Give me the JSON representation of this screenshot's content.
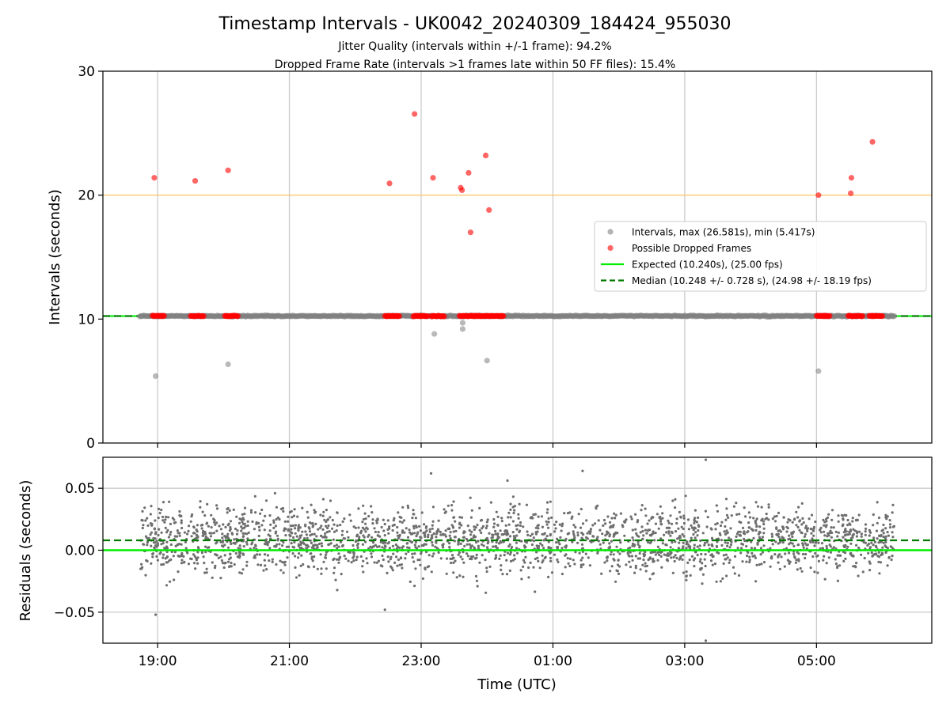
{
  "title": "Timestamp Intervals - UK0042_20240309_184424_955030",
  "subtitle_1": "Jitter Quality (intervals within +/-1 frame): 94.2%",
  "subtitle_2": "Dropped Frame Rate (intervals >1 frames late within 50 FF files): 15.4%",
  "colors": {
    "intervals": "#808080",
    "dropped": "#ff0000",
    "expected": "#00ee00",
    "median": "#007a00",
    "threshold": "#ffc04d",
    "grid": "#cccccc",
    "residuals": "#6e6e6e"
  },
  "chart_data": [
    {
      "type": "scatter",
      "panel": "top",
      "ylabel": "Intervals (seconds)",
      "ylim": [
        0,
        30
      ],
      "yticks": [
        "0",
        "10",
        "20",
        "30"
      ],
      "xlim_hours": [
        18.17,
        30.75
      ],
      "xgrid": true,
      "legend_position": "right",
      "legend": [
        "Intervals, max (26.581s), min (5.417s)",
        "Possible Dropped Frames",
        "Expected (10.240s), (25.00 fps)",
        "Median (10.248 +/- 0.728 s), (24.98 +/- 18.19 fps)"
      ],
      "interval_range_hours": [
        18.73,
        30.18
      ],
      "interval_baseline": 10.248,
      "intervals_outliers": [
        {
          "x": 18.97,
          "y": 5.4
        },
        {
          "x": 20.07,
          "y": 6.35
        },
        {
          "x": 23.2,
          "y": 8.8
        },
        {
          "x": 23.63,
          "y": 9.2
        },
        {
          "x": 23.63,
          "y": 9.7
        },
        {
          "x": 24.0,
          "y": 6.65
        },
        {
          "x": 29.03,
          "y": 5.8
        }
      ],
      "dropped_frames": [
        {
          "x": 18.95,
          "y": 21.4
        },
        {
          "x": 19.57,
          "y": 21.15
        },
        {
          "x": 20.07,
          "y": 22.0
        },
        {
          "x": 22.52,
          "y": 20.95
        },
        {
          "x": 22.9,
          "y": 26.55
        },
        {
          "x": 23.18,
          "y": 21.4
        },
        {
          "x": 23.6,
          "y": 20.6
        },
        {
          "x": 23.62,
          "y": 20.4
        },
        {
          "x": 23.72,
          "y": 21.8
        },
        {
          "x": 23.75,
          "y": 17.0
        },
        {
          "x": 23.98,
          "y": 23.2
        },
        {
          "x": 24.03,
          "y": 18.8
        },
        {
          "x": 29.03,
          "y": 20.0
        },
        {
          "x": 29.52,
          "y": 20.15
        },
        {
          "x": 29.53,
          "y": 21.4
        },
        {
          "x": 29.85,
          "y": 24.3
        }
      ],
      "dropped_clusters_hours": [
        [
          18.92,
          19.1
        ],
        [
          19.5,
          19.7
        ],
        [
          20.02,
          20.22
        ],
        [
          22.45,
          22.67
        ],
        [
          22.88,
          23.1
        ],
        [
          23.15,
          23.35
        ],
        [
          23.58,
          23.95
        ],
        [
          23.97,
          24.25
        ],
        [
          29.0,
          29.2
        ],
        [
          29.48,
          29.7
        ],
        [
          29.8,
          30.0
        ]
      ],
      "expected": 10.24,
      "median": 10.248,
      "threshold": 20.0
    },
    {
      "type": "scatter",
      "panel": "bottom",
      "ylabel": "Residuals (seconds)",
      "xlabel": "Time (UTC)",
      "ylim": [
        -0.075,
        0.075
      ],
      "yticks": [
        "0.05",
        "0.00",
        "−0.05"
      ],
      "xticks": [
        "19:00",
        "21:00",
        "23:00",
        "01:00",
        "03:00",
        "05:00"
      ],
      "xlim_hours": [
        18.17,
        30.75
      ],
      "grid": true,
      "residual_range_hours": [
        18.73,
        30.18
      ],
      "residual_spread_std": 0.022,
      "residual_extremes": [
        {
          "x": 27.32,
          "y": 0.073
        },
        {
          "x": 27.32,
          "y": -0.073
        },
        {
          "x": 18.97,
          "y": -0.052
        },
        {
          "x": 22.45,
          "y": -0.048
        },
        {
          "x": 25.45,
          "y": 0.064
        },
        {
          "x": 23.15,
          "y": 0.062
        }
      ],
      "expected": 0.0,
      "median": 0.008
    }
  ]
}
